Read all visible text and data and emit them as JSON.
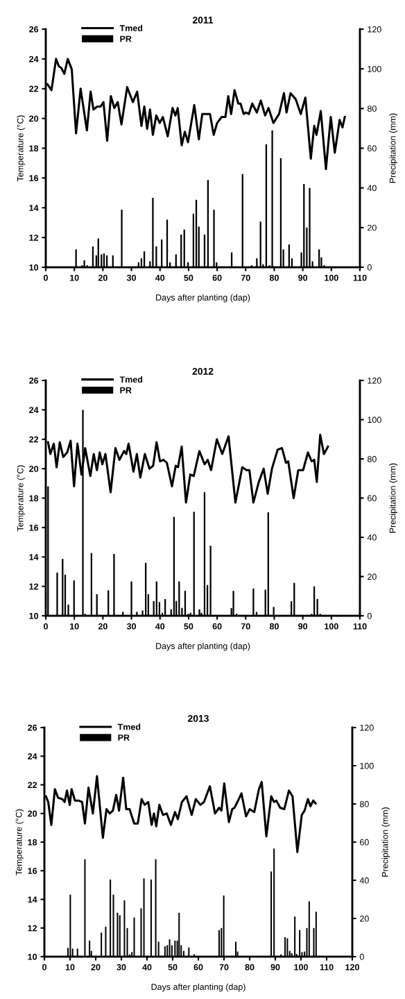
{
  "chart_data": [
    {
      "type": "line",
      "title": "2011",
      "xlabel": "Days after planting (dap)",
      "ylabel": "Temperature (°C)",
      "y2label": "Precipitation (mm)",
      "xlim": [
        0,
        110
      ],
      "xticks": [
        0,
        10,
        20,
        30,
        40,
        50,
        60,
        70,
        80,
        90,
        100,
        110
      ],
      "ylim": [
        10,
        26
      ],
      "yticks": [
        10,
        12,
        14,
        16,
        18,
        20,
        22,
        24,
        26
      ],
      "y2lim": [
        0,
        120
      ],
      "y2ticks": [
        0,
        20,
        40,
        60,
        80,
        100,
        120
      ],
      "legend": "top left",
      "grid": false,
      "marker": "none",
      "line_style": "solid",
      "series": [
        {
          "name": "Tmed",
          "color": "#000000",
          "x": [
            0.6,
            2,
            3.6,
            4.6,
            5.4,
            6.5,
            7.7,
            9.1,
            10.6,
            12.2,
            14.4,
            15.7,
            16.7,
            18,
            19.2,
            20.2,
            21.5,
            22.8,
            24,
            25.2,
            26.5,
            28.5,
            30.5,
            32,
            33.5,
            34.5,
            35.5,
            36.5,
            37.5,
            38.7,
            39.9,
            41,
            42.7,
            44.4,
            45.4,
            46.2,
            47.6,
            48.7,
            49.8,
            52,
            53.6,
            54.8,
            56.3,
            57.5,
            58.8,
            60,
            61.6,
            62.9,
            63.9,
            64.9,
            66.1,
            67.4,
            68.2,
            69.3,
            70.1,
            71.1,
            72.3,
            73.9,
            75.3,
            76.8,
            78,
            79.7,
            81.7,
            83.4,
            84.3,
            85.7,
            87.5,
            89.3,
            90.9,
            92.8,
            94,
            94.8,
            96.3,
            98.1,
            99.8,
            101.2,
            102.9,
            103.9,
            104.7
          ],
          "values": [
            22.3,
            21.9,
            24.0,
            23.5,
            23.4,
            23.0,
            24.0,
            23.3,
            19.0,
            22.0,
            19.2,
            21.8,
            20.6,
            20.8,
            20.8,
            21.1,
            18.5,
            21.5,
            20.7,
            21.1,
            19.6,
            22.1,
            21.1,
            21.8,
            19.5,
            20.8,
            19.3,
            20.6,
            18.9,
            20.2,
            19.7,
            20.1,
            18.8,
            20.7,
            20.2,
            20.7,
            18.2,
            19.1,
            18.4,
            20.9,
            18.6,
            20.3,
            20.3,
            20.3,
            18.9,
            19.7,
            20.1,
            20.1,
            21.5,
            20.3,
            21.9,
            21.0,
            21.0,
            20.3,
            20.4,
            20.3,
            21.0,
            20.4,
            21.2,
            20.2,
            20.7,
            19.7,
            20.3,
            21.7,
            20.4,
            21.7,
            21.3,
            20.3,
            21.4,
            17.3,
            19.5,
            18.9,
            20.5,
            16.6,
            20.1,
            17.7,
            19.9,
            19.4,
            20.1
          ]
        },
        {
          "name": "PR",
          "type": "bar",
          "axis": "y2",
          "color": "#000000",
          "x": [
            10.6,
            12.7,
            13.5,
            14.5,
            16.5,
            17.7,
            18.4,
            19.5,
            20.4,
            21.4,
            23.5,
            26.6,
            32.5,
            33.5,
            34.5,
            36.5,
            37.5,
            38.7,
            40.6,
            42.5,
            43.5,
            45.6,
            47.4,
            48.5,
            49.8,
            51.7,
            52.7,
            53.6,
            55.6,
            56.8,
            58.9,
            59.8,
            65.1,
            68.9,
            72.1,
            73.9,
            75.2,
            76.1,
            77.2,
            78.3,
            79.3,
            82.3,
            83.2,
            85.2,
            86.2,
            89.5,
            90.4,
            91.4,
            92.4,
            93.4,
            95.7,
            96.5,
            97.5
          ],
          "values": [
            9,
            1,
            3.5,
            1,
            10.5,
            6,
            14.5,
            6.5,
            7,
            6,
            6,
            29,
            2.5,
            4.5,
            8,
            3,
            35,
            10.5,
            14,
            24,
            2.5,
            6.5,
            16.5,
            19,
            2.5,
            27,
            34,
            20.5,
            16.5,
            44,
            29,
            2.5,
            7.5,
            47,
            1,
            4.5,
            23,
            1.5,
            62,
            1,
            69,
            55,
            9,
            11.5,
            4.5,
            7.5,
            42,
            20,
            40,
            3,
            9,
            5,
            1
          ]
        }
      ]
    },
    {
      "type": "line",
      "title": "2012",
      "xlabel": "Days after planting (dap)",
      "ylabel": "Temperature (°C)",
      "y2label": "Precipitation (mm)",
      "xlim": [
        0,
        110
      ],
      "xticks": [
        0,
        10,
        20,
        30,
        40,
        50,
        60,
        70,
        80,
        90,
        100,
        110
      ],
      "ylim": [
        10,
        26
      ],
      "yticks": [
        10,
        12,
        14,
        16,
        18,
        20,
        22,
        24,
        26
      ],
      "y2lim": [
        0,
        120
      ],
      "y2ticks": [
        0,
        20,
        40,
        60,
        80,
        100,
        120
      ],
      "legend": "top left",
      "grid": false,
      "marker": "none",
      "line_style": "solid",
      "series": [
        {
          "name": "Tmed",
          "color": "#000000",
          "x": [
            0.8,
            1.6,
            2.8,
            3.8,
            4.9,
            6.1,
            7.5,
            8.7,
            9.9,
            11.1,
            12.5,
            13.8,
            15.6,
            16.8,
            17.9,
            18.9,
            19.8,
            20.9,
            22.7,
            24.4,
            25.8,
            27.4,
            28.2,
            29,
            30.7,
            31.9,
            33.1,
            34.7,
            36.3,
            37.6,
            38.8,
            40,
            41.2,
            42.4,
            44.2,
            45.5,
            46.3,
            47.6,
            49.1,
            50.6,
            51.8,
            53.8,
            55.6,
            56.7,
            57.9,
            59.9,
            61.8,
            64,
            66.4,
            68.8,
            70.3,
            71.3,
            72.7,
            74.6,
            76.3,
            77.7,
            79.2,
            81.2,
            82.7,
            84.1,
            84.9,
            86.8,
            88.4,
            90.1,
            91.8,
            93.1,
            94,
            94.9,
            96.1,
            97.4,
            98.8
          ],
          "values": [
            21.8,
            21.0,
            21.7,
            20.1,
            21.8,
            20.8,
            21.1,
            21.9,
            18.8,
            21.7,
            19.6,
            21.4,
            19.5,
            21.0,
            19.9,
            21.1,
            20.3,
            21.0,
            18.4,
            21.4,
            20.6,
            21.2,
            21.0,
            21.7,
            19.8,
            21.0,
            19.4,
            21.0,
            20.0,
            20.2,
            21.8,
            20.5,
            20.6,
            20.4,
            18.8,
            20.2,
            20.1,
            21.5,
            17.7,
            19.6,
            19.5,
            21.2,
            20.3,
            20.6,
            19.9,
            22.0,
            21.0,
            22.2,
            17.7,
            20.1,
            19.9,
            19.9,
            17.7,
            19.1,
            20.0,
            18.3,
            20.0,
            21.3,
            21.4,
            20.4,
            20.5,
            18.0,
            19.9,
            19.9,
            21.1,
            20.5,
            20.6,
            19.1,
            22.3,
            21.0,
            21.5
          ]
        },
        {
          "name": "PR",
          "type": "bar",
          "axis": "y2",
          "color": "#000000",
          "x": [
            0.8,
            4,
            5.9,
            6.8,
            7.9,
            9.9,
            13,
            13.8,
            16,
            17.9,
            21.9,
            23.9,
            27,
            30,
            31.9,
            33.9,
            35,
            35.9,
            37.8,
            38.8,
            39.8,
            40.8,
            41.8,
            43.9,
            44.9,
            45.7,
            46.7,
            47.7,
            48.8,
            49.9,
            50.7,
            51.9,
            53.8,
            54.5,
            55.6,
            56.6,
            57.7,
            65,
            65.7,
            66.8,
            72.7,
            73.8,
            76.9,
            77.9,
            79.8,
            86,
            87,
            93.1,
            94,
            95.1,
            96.1
          ],
          "values": [
            66,
            22,
            29,
            21,
            5.7,
            18,
            105,
            1,
            32,
            11,
            13,
            31.5,
            2,
            17.5,
            2,
            2.7,
            27,
            11,
            7.5,
            17.5,
            7,
            1.5,
            8.5,
            3.3,
            50.4,
            7.5,
            17.5,
            4,
            12.7,
            1,
            1.5,
            53,
            3.3,
            1.5,
            63,
            15.7,
            35.7,
            3.9,
            12.7,
            1,
            13.9,
            2,
            13.3,
            52.8,
            4.5,
            7.4,
            16.8,
            1,
            15,
            8.6,
            1
          ]
        }
      ]
    },
    {
      "type": "line",
      "title": "2013",
      "xlabel": "Days after planting (dap)",
      "ylabel": "Temperature (°C)",
      "y2label": "Precipitation (mm)",
      "xlim": [
        0,
        120
      ],
      "xticks": [
        0,
        10,
        20,
        30,
        40,
        50,
        60,
        70,
        80,
        90,
        100,
        110,
        120
      ],
      "ylim": [
        10,
        26
      ],
      "yticks": [
        10,
        12,
        14,
        16,
        18,
        20,
        22,
        24,
        26
      ],
      "y2lim": [
        0,
        120
      ],
      "y2ticks": [
        0,
        20,
        40,
        60,
        80,
        100,
        120
      ],
      "legend": "top left",
      "grid": false,
      "marker": "none",
      "line_style": "solid",
      "series": [
        {
          "name": "Tmed",
          "color": "#000000",
          "x": [
            0.6,
            1.5,
            2.7,
            4.1,
            5.3,
            7,
            7.9,
            8.8,
            9.9,
            10.6,
            11.9,
            13.3,
            14.7,
            15.8,
            17.2,
            18.9,
            20.5,
            22.8,
            24.2,
            25.5,
            26.7,
            28,
            29.1,
            30.7,
            31.9,
            33.2,
            35,
            36.4,
            37.9,
            39.1,
            40.5,
            41.8,
            42.7,
            43.6,
            44.8,
            46.2,
            47.7,
            49.3,
            50.9,
            52,
            53.6,
            55.4,
            57.4,
            59,
            60.8,
            62.2,
            64.5,
            66.5,
            68.1,
            69,
            70.1,
            71.9,
            73.2,
            74.1,
            75.5,
            76.8,
            78.6,
            80,
            81.8,
            83.6,
            84.7,
            86.5,
            88.4,
            89.5,
            90.4,
            91.9,
            93.5,
            95.3,
            96.7,
            98.6,
            100.3,
            101.4,
            102.7,
            103.7,
            104.8,
            105.7
          ],
          "values": [
            21.2,
            20.8,
            19.2,
            21.7,
            21.1,
            21.0,
            20.8,
            21.6,
            20.6,
            21.7,
            20.9,
            20.9,
            20.8,
            19.3,
            21.8,
            20.0,
            22.6,
            18.3,
            20.3,
            20.0,
            20.2,
            21.3,
            20.2,
            22.5,
            20.3,
            20.3,
            19.3,
            19.3,
            21.0,
            20.6,
            20.8,
            19.2,
            20.0,
            19.1,
            20.6,
            19.9,
            20.0,
            19.2,
            20.1,
            19.6,
            20.8,
            21.2,
            19.9,
            21.0,
            20.6,
            20.8,
            21.9,
            20.0,
            20.4,
            20.2,
            22.1,
            19.4,
            20.3,
            20.4,
            20.9,
            21.4,
            19.8,
            20.3,
            20.1,
            21.7,
            22.2,
            18.4,
            21.2,
            20.8,
            20.9,
            20.4,
            20.3,
            21.6,
            21.2,
            17.3,
            19.9,
            20.2,
            21.0,
            20.5,
            20.9,
            20.7
          ]
        },
        {
          "name": "PR",
          "type": "bar",
          "axis": "y2",
          "color": "#000000",
          "x": [
            9.2,
            10.1,
            11,
            12.9,
            15.8,
            17.6,
            18.3,
            22.2,
            23.9,
            25.7,
            26.9,
            28.5,
            29.4,
            31.2,
            32.3,
            33.2,
            34.1,
            35,
            37.7,
            38.8,
            41.6,
            43.4,
            44.5,
            47,
            47.9,
            48.8,
            49.7,
            50.9,
            51.8,
            52.5,
            53.3,
            54.3,
            56.3,
            58.4,
            68.1,
            69,
            69.9,
            74.6,
            75.3,
            88.4,
            89.5,
            92.2,
            93.8,
            94.7,
            95.6,
            96.4,
            97.6,
            98.3,
            99.5,
            100.4,
            101.4,
            102.3,
            103.2,
            105,
            105.9
          ],
          "values": [
            4.6,
            32.5,
            4.2,
            4.2,
            51,
            8.4,
            3,
            12.6,
            15.7,
            40.4,
            32.5,
            23,
            21.7,
            29.5,
            15,
            1.2,
            2.4,
            20.5,
            25.3,
            41,
            40.4,
            51,
            7.8,
            5.4,
            6,
            9,
            6,
            8.4,
            8.4,
            23,
            6,
            3,
            4.8,
            1.2,
            13.9,
            15,
            32,
            7.8,
            2.7,
            44.6,
            56.6,
            1.2,
            10.2,
            9.6,
            3,
            1.8,
            21,
            1.4,
            13.9,
            2.4,
            2.7,
            15,
            29,
            15,
            23.5
          ]
        }
      ]
    }
  ]
}
